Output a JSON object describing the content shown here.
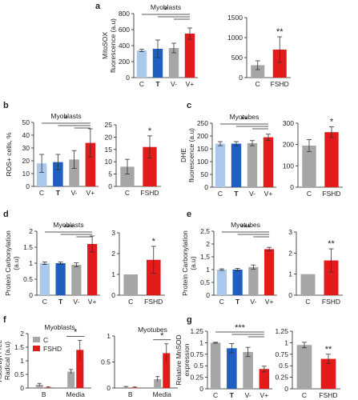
{
  "colors": {
    "C": "#a9c8ec",
    "T": "#1f5fbf",
    "Vminus": "#a6a6a6",
    "Vplus": "#e31b1b",
    "FSHD": "#e31b1b",
    "Cgrey": "#a6a6a6",
    "axis": "#222222"
  },
  "chart_data": [
    {
      "id": "a1",
      "panel": "a",
      "type": "bar",
      "title": "Myoblasts",
      "ylabel": "MitoSOX fluorescence (a.u)",
      "ylim": [
        0,
        800
      ],
      "yticks": [
        0,
        200,
        400,
        600,
        800
      ],
      "categories": [
        "C",
        "T",
        "V-",
        "V+"
      ],
      "values": [
        340,
        360,
        370,
        550
      ],
      "errors": [
        15,
        110,
        60,
        70
      ],
      "colors": [
        "#a9c8ec",
        "#1f5fbf",
        "#a6a6a6",
        "#e31b1b"
      ],
      "significance": {
        "label": "*",
        "bracket": true
      }
    },
    {
      "id": "a2",
      "panel": "a",
      "type": "bar",
      "title": "",
      "ylabel": "",
      "ylim": [
        0,
        1500
      ],
      "yticks": [
        0,
        500,
        1000,
        1500
      ],
      "categories": [
        "C",
        "FSHD"
      ],
      "values": [
        310,
        700
      ],
      "errors": [
        110,
        320
      ],
      "colors": [
        "#a6a6a6",
        "#e31b1b"
      ],
      "significance": {
        "label": "**",
        "bar": 1
      }
    },
    {
      "id": "b1",
      "panel": "b",
      "type": "bar",
      "title": "Myoblasts",
      "ylabel": "ROS+ cells, %",
      "ylim": [
        0,
        50
      ],
      "yticks": [
        0,
        10,
        20,
        30,
        40,
        50
      ],
      "categories": [
        "C",
        "T",
        "V-",
        "V+"
      ],
      "values": [
        18,
        19,
        21,
        34
      ],
      "errors": [
        7,
        6,
        7,
        11
      ],
      "colors": [
        "#a9c8ec",
        "#1f5fbf",
        "#a6a6a6",
        "#e31b1b"
      ],
      "significance": {
        "label": "*",
        "bracket": true
      }
    },
    {
      "id": "b2",
      "panel": "b",
      "type": "bar",
      "title": "",
      "ylabel": "",
      "ylim": [
        0,
        25
      ],
      "yticks": [
        0,
        5,
        10,
        15,
        20,
        25
      ],
      "categories": [
        "C",
        "FSHD"
      ],
      "values": [
        8,
        16
      ],
      "errors": [
        3,
        4.5
      ],
      "colors": [
        "#a6a6a6",
        "#e31b1b"
      ],
      "significance": {
        "label": "*",
        "bar": 1
      }
    },
    {
      "id": "c1",
      "panel": "c",
      "type": "bar",
      "title": "Myotubes",
      "ylabel": "DHE fluorescence (a.u)",
      "ylim": [
        0,
        250
      ],
      "yticks": [
        0,
        50,
        100,
        150,
        200,
        250
      ],
      "categories": [
        "C",
        "T",
        "V-",
        "V+"
      ],
      "values": [
        170,
        170,
        172,
        195
      ],
      "errors": [
        8,
        8,
        10,
        12
      ],
      "colors": [
        "#a9c8ec",
        "#1f5fbf",
        "#a6a6a6",
        "#e31b1b"
      ],
      "significance": {
        "label": "**",
        "bracket": true
      }
    },
    {
      "id": "c2",
      "panel": "c",
      "type": "bar",
      "title": "",
      "ylabel": "",
      "ylim": [
        0,
        300
      ],
      "yticks": [
        0,
        100,
        200,
        300
      ],
      "categories": [
        "C",
        "FSHD"
      ],
      "values": [
        195,
        258
      ],
      "errors": [
        28,
        25
      ],
      "colors": [
        "#a6a6a6",
        "#e31b1b"
      ],
      "significance": {
        "label": "*",
        "bar": 1
      }
    },
    {
      "id": "d1",
      "panel": "d",
      "type": "bar",
      "title": "Myoblasts",
      "ylabel": "Protein Carbonylation (a.u)",
      "ylim": [
        0,
        2
      ],
      "yticks": [
        0,
        0.5,
        1,
        1.5,
        2
      ],
      "categories": [
        "C",
        "T",
        "V-",
        "V+"
      ],
      "values": [
        1.0,
        1.0,
        0.95,
        1.6
      ],
      "errors": [
        0.04,
        0.04,
        0.06,
        0.25
      ],
      "colors": [
        "#a9c8ec",
        "#1f5fbf",
        "#a6a6a6",
        "#e31b1b"
      ],
      "significance": {
        "label": "***",
        "bracket": true
      }
    },
    {
      "id": "d2",
      "panel": "d",
      "type": "bar",
      "title": "",
      "ylabel": "",
      "ylim": [
        0,
        3
      ],
      "yticks": [
        0,
        1,
        2,
        3
      ],
      "categories": [
        "C",
        "FSHD"
      ],
      "values": [
        1.0,
        1.7
      ],
      "errors": [
        0,
        0.65
      ],
      "colors": [
        "#a6a6a6",
        "#e31b1b"
      ],
      "significance": {
        "label": "*",
        "bar": 1
      }
    },
    {
      "id": "e1",
      "panel": "e",
      "type": "bar",
      "title": "Myotubes",
      "ylabel": "Protein Carbonylation (a.u)",
      "ylim": [
        0,
        2.5
      ],
      "yticks": [
        "0",
        "0,5",
        "1",
        "1,5",
        "2",
        "2,5"
      ],
      "categories": [
        "C",
        "T",
        "V-",
        "V+"
      ],
      "values": [
        1.0,
        1.0,
        1.1,
        1.8
      ],
      "errors": [
        0.03,
        0.05,
        0.08,
        0.07
      ],
      "colors": [
        "#a9c8ec",
        "#1f5fbf",
        "#a6a6a6",
        "#e31b1b"
      ],
      "significance": {
        "label": "***",
        "bracket": true
      }
    },
    {
      "id": "e2",
      "panel": "e",
      "type": "bar",
      "title": "",
      "ylabel": "",
      "ylim": [
        0,
        3
      ],
      "yticks": [
        0,
        1,
        2,
        3
      ],
      "categories": [
        "C",
        "FSHD"
      ],
      "values": [
        1.0,
        1.65
      ],
      "errors": [
        0,
        0.55
      ],
      "colors": [
        "#a6a6a6",
        "#e31b1b"
      ],
      "significance": {
        "label": "**",
        "bar": 1
      }
    },
    {
      "id": "f1",
      "panel": "f",
      "type": "bar",
      "title": "Myoblasts",
      "ylabel": "Ascorbyl Free Radical (a.u)",
      "ylim": [
        0,
        2
      ],
      "yticks": [
        0,
        0.5,
        1,
        1.5,
        2
      ],
      "categories": [
        "B",
        "Media"
      ],
      "series": [
        {
          "name": "C",
          "values": [
            0.12,
            0.6
          ],
          "errors": [
            0.05,
            0.08
          ]
        },
        {
          "name": "FSHD",
          "values": [
            0.02,
            1.4
          ],
          "errors": [
            0.02,
            0.35
          ]
        }
      ],
      "colors": [
        "#a6a6a6",
        "#e31b1b"
      ],
      "significance": {
        "label": "*",
        "group": 1
      },
      "legend": "top-left"
    },
    {
      "id": "f2",
      "panel": "f",
      "type": "bar",
      "title": "Myotubes",
      "ylabel": "",
      "ylim": [
        0,
        1
      ],
      "yticks": [
        0,
        0.5,
        1
      ],
      "categories": [
        "B",
        "Media"
      ],
      "series": [
        {
          "name": "C",
          "values": [
            0.02,
            0.17
          ],
          "errors": [
            0.01,
            0.05
          ]
        },
        {
          "name": "FSHD",
          "values": [
            0.01,
            0.67
          ],
          "errors": [
            0.01,
            0.18
          ]
        }
      ],
      "colors": [
        "#a6a6a6",
        "#e31b1b"
      ],
      "significance": {
        "label": "*",
        "group": 1
      }
    },
    {
      "id": "g1",
      "panel": "g",
      "type": "bar",
      "title": "",
      "ylabel": "Relative MnSOD expression",
      "ylim": [
        0,
        1.25
      ],
      "yticks": [
        0,
        0.25,
        0.5,
        0.75,
        1,
        1.25
      ],
      "categories": [
        "C",
        "T",
        "V-",
        "V+"
      ],
      "values": [
        1.0,
        0.88,
        0.8,
        0.43
      ],
      "errors": [
        0.01,
        0.1,
        0.1,
        0.06
      ],
      "colors": [
        "#a6a6a6",
        "#1f5fbf",
        "#a6a6a6",
        "#e31b1b"
      ],
      "significance": {
        "label": "***",
        "bracket": true
      }
    },
    {
      "id": "g2",
      "panel": "g",
      "type": "bar",
      "title": "",
      "ylabel": "",
      "ylim": [
        0,
        1.25
      ],
      "yticks": [
        0,
        0.25,
        0.5,
        0.75,
        1,
        1.25
      ],
      "categories": [
        "C",
        "FSHD"
      ],
      "values": [
        0.95,
        0.65
      ],
      "errors": [
        0.06,
        0.1
      ],
      "colors": [
        "#a6a6a6",
        "#e31b1b"
      ],
      "significance": {
        "label": "**",
        "bar": 1
      }
    }
  ]
}
